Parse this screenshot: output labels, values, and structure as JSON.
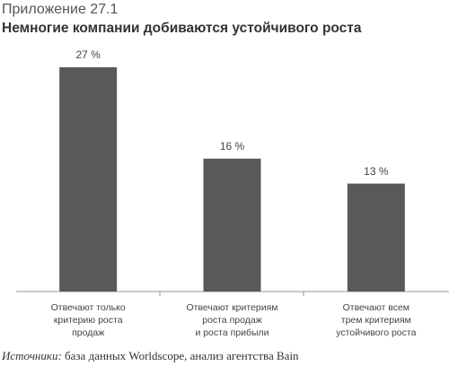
{
  "chart_data": {
    "type": "bar",
    "subtitle": "Приложение 27.1",
    "title": "Немногие компании добиваются устойчивого роста",
    "categories": [
      [
        "Отвечают только",
        "критерию роста",
        "продаж"
      ],
      [
        "Отвечают критериям",
        "роста продаж",
        "и роста прибыли"
      ],
      [
        "Отвечают всем",
        "трем критериям",
        "устойчивого роста"
      ]
    ],
    "values": [
      27,
      16,
      13
    ],
    "value_labels": [
      "27 %",
      "16 %",
      "13 %"
    ],
    "color": "#595959",
    "ylim": [
      0,
      30
    ],
    "source_label": "Источники:",
    "source": "база данных Worldscope, анализ агентства Bain"
  }
}
